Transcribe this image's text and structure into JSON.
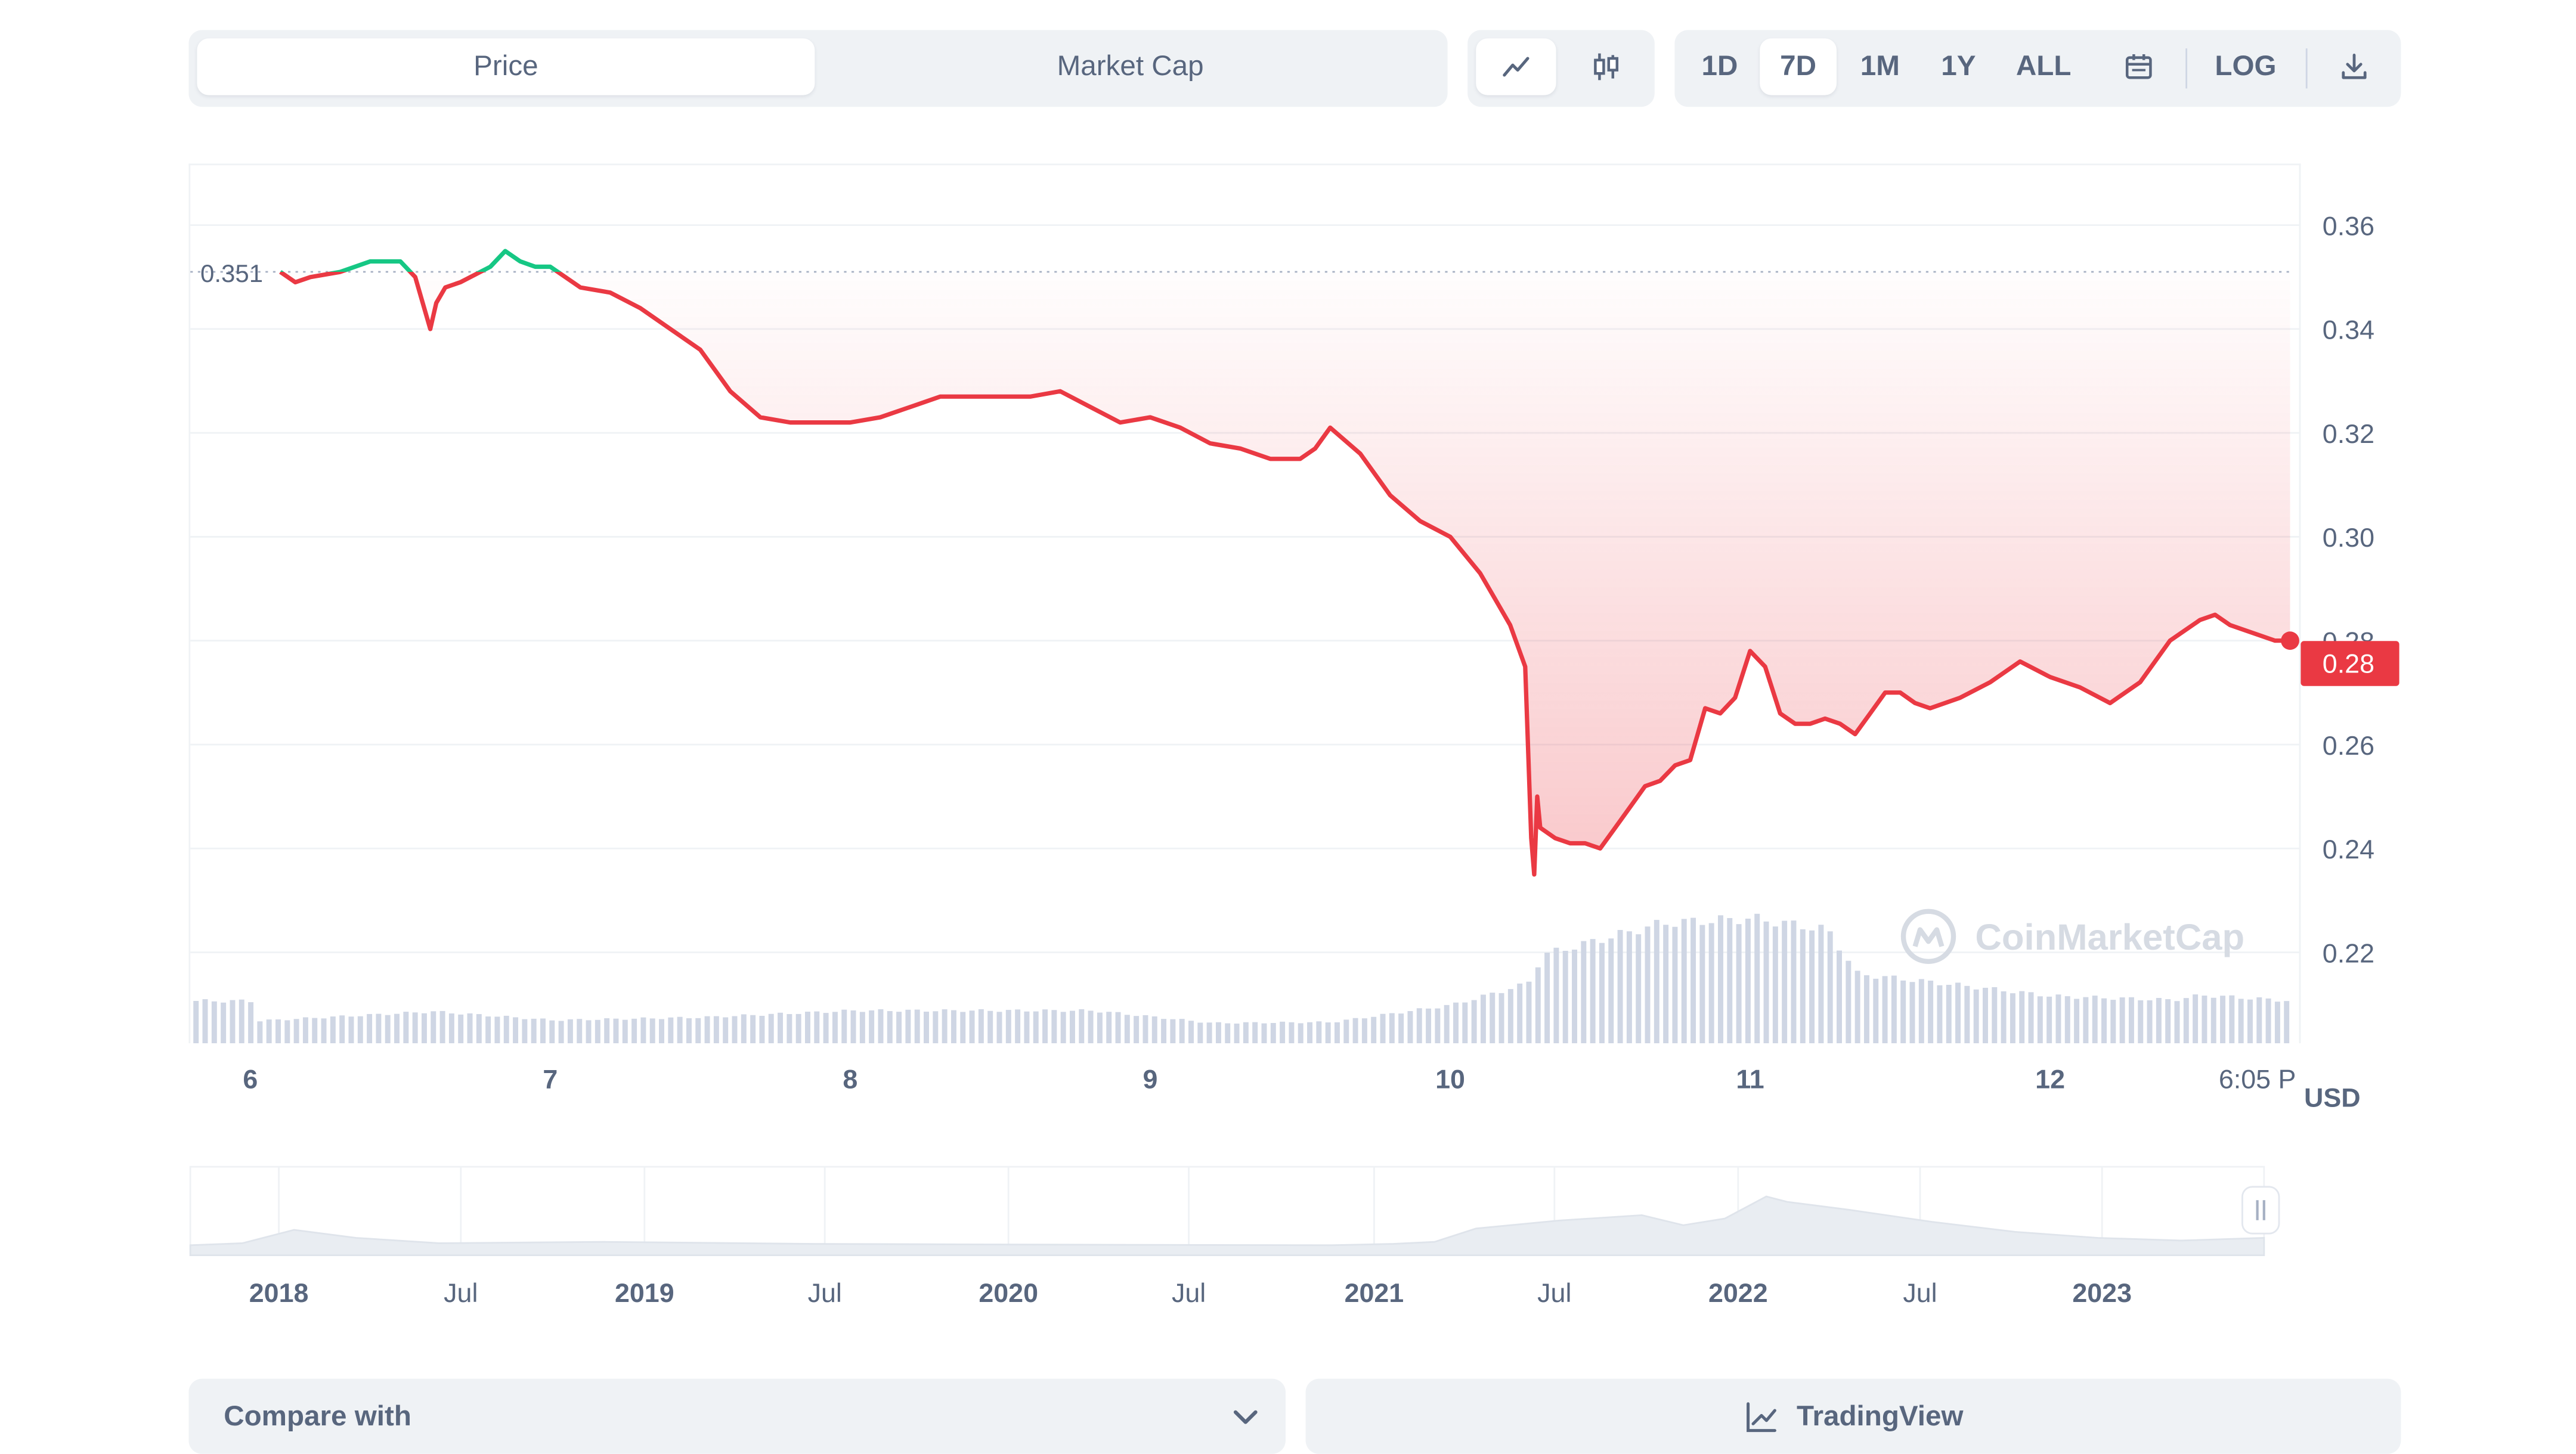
{
  "tabs": {
    "price": "Price",
    "market_cap": "Market Cap"
  },
  "chart_type_icons": [
    "line-chart-icon",
    "candlestick-icon"
  ],
  "ranges": [
    "1D",
    "7D",
    "1M",
    "1Y",
    "ALL"
  ],
  "active_range": "7D",
  "log_label": "LOG",
  "icons": {
    "calendar": "calendar-icon",
    "download": "download-icon"
  },
  "colors": {
    "up": "#16c784",
    "down": "#ea3943",
    "volume": "#cfd6e4",
    "panel": "#eff2f5",
    "text": "#58667e",
    "grid": "#eff2f5"
  },
  "watermark": "CoinMarketCap",
  "currency_label": "USD",
  "reference_label": "0.351",
  "current_price_label": "0.28",
  "chart_data": {
    "type": "line",
    "x_ticks": [
      "6",
      "7",
      "8",
      "9",
      "10",
      "11",
      "12",
      "6:05 P"
    ],
    "y_ticks": [
      0.22,
      0.24,
      0.26,
      0.28,
      0.3,
      0.32,
      0.34,
      0.36
    ],
    "y_tick_labels": [
      "0.22",
      "0.24",
      "0.26",
      "0.28",
      "0.30",
      "0.32",
      "0.34",
      "0.36"
    ],
    "ylim": [
      0.2025,
      0.3712
    ],
    "xlim": [
      5.8,
      12.83
    ],
    "grid": true,
    "reference_line": 0.351,
    "current_value": 0.28,
    "series": [
      {
        "x": [
          6.1,
          6.15,
          6.2,
          6.3,
          6.4,
          6.5,
          6.55,
          6.6,
          6.62,
          6.65,
          6.7,
          6.8,
          6.85,
          6.9,
          6.95,
          7.0,
          7.1,
          7.2,
          7.3,
          7.4,
          7.5,
          7.6,
          7.7,
          7.8,
          7.9,
          8.0,
          8.1,
          8.2,
          8.3,
          8.4,
          8.5,
          8.6,
          8.7,
          8.8,
          8.9,
          9.0,
          9.1,
          9.2,
          9.3,
          9.4,
          9.5,
          9.55,
          9.6,
          9.7,
          9.8,
          9.9,
          10.0,
          10.1,
          10.15,
          10.2,
          10.25,
          10.27,
          10.28,
          10.29,
          10.3,
          10.35,
          10.4,
          10.45,
          10.5,
          10.55,
          10.6,
          10.65,
          10.7,
          10.75,
          10.8,
          10.85,
          10.9,
          10.95,
          11.0,
          11.05,
          11.1,
          11.15,
          11.2,
          11.25,
          11.3,
          11.35,
          11.4,
          11.45,
          11.5,
          11.55,
          11.6,
          11.7,
          11.8,
          11.9,
          12.0,
          12.1,
          12.2,
          12.3,
          12.4,
          12.45,
          12.5,
          12.55,
          12.6,
          12.65,
          12.7,
          12.75,
          12.8
        ],
        "y": [
          0.351,
          0.349,
          0.35,
          0.351,
          0.353,
          0.353,
          0.35,
          0.34,
          0.345,
          0.348,
          0.349,
          0.352,
          0.355,
          0.353,
          0.352,
          0.352,
          0.348,
          0.347,
          0.344,
          0.34,
          0.336,
          0.328,
          0.323,
          0.322,
          0.322,
          0.322,
          0.323,
          0.325,
          0.327,
          0.327,
          0.327,
          0.327,
          0.328,
          0.325,
          0.322,
          0.323,
          0.321,
          0.318,
          0.317,
          0.315,
          0.315,
          0.317,
          0.321,
          0.316,
          0.308,
          0.303,
          0.3,
          0.293,
          0.288,
          0.283,
          0.275,
          0.242,
          0.235,
          0.25,
          0.244,
          0.242,
          0.241,
          0.241,
          0.24,
          0.244,
          0.248,
          0.252,
          0.253,
          0.256,
          0.257,
          0.267,
          0.266,
          0.269,
          0.278,
          0.275,
          0.266,
          0.264,
          0.264,
          0.265,
          0.264,
          0.262,
          0.266,
          0.27,
          0.27,
          0.268,
          0.267,
          0.269,
          0.272,
          0.276,
          0.273,
          0.271,
          0.268,
          0.272,
          0.28,
          0.282,
          0.284,
          0.285,
          0.283,
          0.282,
          0.281,
          0.28,
          0.28
        ]
      }
    ],
    "volume": [
      {
        "x": 6.0,
        "v": 0.23
      },
      {
        "x": 6.6,
        "v": 0.33
      },
      {
        "x": 7.0,
        "v": 0.24
      },
      {
        "x": 7.5,
        "v": 0.27
      },
      {
        "x": 8.0,
        "v": 0.34
      },
      {
        "x": 8.8,
        "v": 0.34
      },
      {
        "x": 9.2,
        "v": 0.21
      },
      {
        "x": 9.6,
        "v": 0.22
      },
      {
        "x": 10.0,
        "v": 0.4
      },
      {
        "x": 10.25,
        "v": 0.62
      },
      {
        "x": 10.3,
        "v": 0.92
      },
      {
        "x": 10.7,
        "v": 1.25
      },
      {
        "x": 11.0,
        "v": 1.3
      },
      {
        "x": 11.25,
        "v": 1.18
      },
      {
        "x": 11.35,
        "v": 0.72
      },
      {
        "x": 11.7,
        "v": 0.6
      },
      {
        "x": 12.0,
        "v": 0.49
      },
      {
        "x": 12.4,
        "v": 0.45
      },
      {
        "x": 12.5,
        "v": 0.5
      },
      {
        "x": 12.8,
        "v": 0.44
      }
    ]
  },
  "navigator": {
    "labels": [
      "2018",
      "Jul",
      "2019",
      "Jul",
      "2020",
      "Jul",
      "2021",
      "Jul",
      "2022",
      "Jul",
      "2023"
    ],
    "bold": [
      true,
      false,
      true,
      false,
      true,
      false,
      true,
      false,
      true,
      false,
      true
    ],
    "ylim": [
      0,
      1
    ],
    "series": [
      {
        "t": 0.0,
        "v": 0.05
      },
      {
        "t": 0.025,
        "v": 0.08
      },
      {
        "t": 0.05,
        "v": 0.28
      },
      {
        "t": 0.08,
        "v": 0.16
      },
      {
        "t": 0.12,
        "v": 0.08
      },
      {
        "t": 0.2,
        "v": 0.1
      },
      {
        "t": 0.3,
        "v": 0.07
      },
      {
        "t": 0.4,
        "v": 0.06
      },
      {
        "t": 0.55,
        "v": 0.05
      },
      {
        "t": 0.58,
        "v": 0.07
      },
      {
        "t": 0.6,
        "v": 0.1
      },
      {
        "t": 0.62,
        "v": 0.3
      },
      {
        "t": 0.66,
        "v": 0.42
      },
      {
        "t": 0.7,
        "v": 0.5
      },
      {
        "t": 0.72,
        "v": 0.35
      },
      {
        "t": 0.74,
        "v": 0.45
      },
      {
        "t": 0.76,
        "v": 0.78
      },
      {
        "t": 0.77,
        "v": 0.7
      },
      {
        "t": 0.8,
        "v": 0.58
      },
      {
        "t": 0.84,
        "v": 0.4
      },
      {
        "t": 0.88,
        "v": 0.25
      },
      {
        "t": 0.92,
        "v": 0.16
      },
      {
        "t": 0.96,
        "v": 0.12
      },
      {
        "t": 1.0,
        "v": 0.16
      }
    ]
  },
  "compare_label": "Compare with",
  "tradingview_label": "TradingView"
}
